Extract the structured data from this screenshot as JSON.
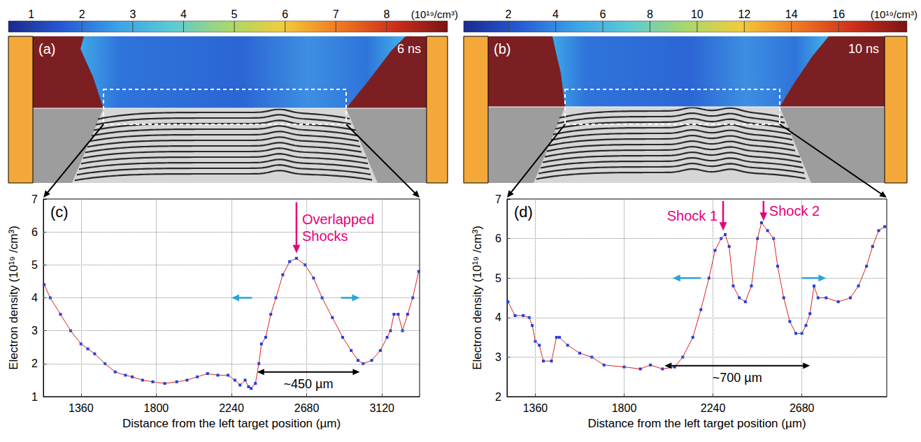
{
  "chart_data": [
    {
      "type": "density_map",
      "title": "(a)",
      "subtitle": "6 ns",
      "colorbar": {
        "label": "(10¹⁹/cm³)",
        "range": [
          0.55,
          9.2
        ],
        "ticks": [
          1,
          2,
          3,
          4,
          5,
          6,
          7,
          8
        ]
      }
    },
    {
      "type": "density_map",
      "title": "(b)",
      "subtitle": "10 ns",
      "colorbar": {
        "label": "(10¹⁹/cm³)",
        "range": [
          0.1,
          18.9
        ],
        "ticks": [
          2,
          4,
          6,
          8,
          10,
          12,
          14,
          16
        ]
      }
    },
    {
      "type": "line",
      "title": "(c)",
      "xlabel": "Distance from the left target position (µm)",
      "ylabel": "Electron density (10¹⁹ /cm³)",
      "x": [
        1145,
        1180,
        1240,
        1300,
        1360,
        1400,
        1440,
        1500,
        1560,
        1620,
        1660,
        1720,
        1780,
        1850,
        1920,
        1980,
        2040,
        2100,
        2160,
        2220,
        2260,
        2290,
        2320,
        2340,
        2355,
        2380,
        2400,
        2415,
        2440,
        2470,
        2500,
        2540,
        2580,
        2620,
        2670,
        2720,
        2770,
        2830,
        2890,
        2940,
        2980,
        3010,
        3060,
        3110,
        3150,
        3170,
        3190,
        3215,
        3240,
        3270,
        3300,
        3335
      ],
      "values": [
        4.4,
        4.0,
        3.5,
        3.0,
        2.6,
        2.45,
        2.3,
        2.0,
        1.75,
        1.65,
        1.6,
        1.5,
        1.45,
        1.4,
        1.45,
        1.5,
        1.6,
        1.7,
        1.65,
        1.65,
        1.5,
        1.35,
        1.5,
        1.3,
        1.25,
        1.4,
        2.0,
        2.6,
        2.8,
        3.5,
        4.0,
        4.7,
        5.1,
        5.2,
        5.0,
        4.6,
        4.0,
        3.4,
        2.8,
        2.4,
        2.1,
        2.0,
        2.1,
        2.4,
        2.8,
        3.0,
        3.5,
        3.5,
        3.0,
        3.5,
        4.0,
        4.8
      ],
      "color": "#1f3fe0",
      "marker": "square",
      "xlim": [
        1140,
        3340
      ],
      "xticks": [
        1360,
        1800,
        2240,
        2680,
        3120
      ],
      "ylim": [
        1,
        7
      ],
      "yticks": [
        1,
        2,
        3,
        4,
        5,
        6,
        7
      ],
      "grid": true,
      "annotations": [
        {
          "text": "Overlapped Shocks",
          "arrow": [
            [
              2620,
              6.9
            ],
            [
              2620,
              5.35
            ]
          ],
          "color": "#e6007e"
        },
        {
          "text": "~450 µm",
          "arrow": [
            [
              2390,
              1.75
            ],
            [
              2990,
              1.75
            ]
          ],
          "color": "#000000"
        }
      ],
      "arrows": [
        {
          "from": [
            2360,
            4.0
          ],
          "to": [
            2240,
            4.0
          ],
          "color": "#29a3dc"
        },
        {
          "from": [
            2880,
            4.0
          ],
          "to": [
            2990,
            4.0
          ],
          "color": "#29a3dc"
        }
      ]
    },
    {
      "type": "line",
      "title": "(d)",
      "xlabel": "Distance from the left target position (µm)",
      "ylabel": "Electron density (10¹⁹ /cm³)",
      "x": [
        1225,
        1260,
        1300,
        1330,
        1345,
        1360,
        1380,
        1400,
        1440,
        1465,
        1480,
        1520,
        1580,
        1640,
        1700,
        1800,
        1880,
        1930,
        1990,
        2050,
        2090,
        2140,
        2180,
        2220,
        2250,
        2280,
        2300,
        2320,
        2340,
        2370,
        2400,
        2430,
        2460,
        2480,
        2510,
        2540,
        2560,
        2590,
        2620,
        2650,
        2680,
        2700,
        2720,
        2740,
        2760,
        2800,
        2860,
        2920,
        2960,
        3000,
        3030,
        3060,
        3090
      ],
      "values": [
        4.4,
        4.05,
        4.05,
        4.0,
        3.8,
        3.4,
        3.3,
        2.9,
        2.9,
        3.5,
        3.5,
        3.3,
        3.1,
        3.0,
        2.8,
        2.75,
        2.7,
        2.8,
        2.7,
        2.75,
        3.0,
        3.5,
        4.2,
        5.0,
        5.7,
        6.0,
        6.1,
        5.8,
        4.8,
        4.5,
        4.4,
        4.8,
        6.0,
        6.4,
        6.2,
        6.0,
        5.3,
        4.5,
        3.9,
        3.6,
        3.6,
        3.8,
        4.1,
        4.8,
        4.5,
        4.5,
        4.4,
        4.5,
        4.8,
        5.3,
        5.8,
        6.2,
        6.3
      ],
      "color": "#1f3fe0",
      "marker": "square",
      "xlim": [
        1220,
        3100
      ],
      "xticks": [
        1360,
        1800,
        2240,
        2680
      ],
      "ylim": [
        2,
        7
      ],
      "yticks": [
        2,
        3,
        4,
        5,
        6,
        7
      ],
      "grid": true,
      "annotations": [
        {
          "text": "Shock 1",
          "arrow": [
            [
              2290,
              6.95
            ],
            [
              2290,
              6.2
            ]
          ],
          "color": "#e6007e"
        },
        {
          "text": "Shock 2",
          "arrow": [
            [
              2490,
              6.95
            ],
            [
              2490,
              6.45
            ]
          ],
          "color": "#e6007e"
        },
        {
          "text": "~700 µm",
          "arrow": [
            [
              2000,
              2.78
            ],
            [
              2720,
              2.78
            ]
          ],
          "color": "#000000"
        }
      ],
      "arrows": [
        {
          "from": [
            2180,
            5.0
          ],
          "to": [
            2040,
            5.0
          ],
          "color": "#29a3dc"
        },
        {
          "from": [
            2680,
            5.0
          ],
          "to": [
            2800,
            5.0
          ],
          "color": "#29a3dc"
        }
      ]
    }
  ]
}
